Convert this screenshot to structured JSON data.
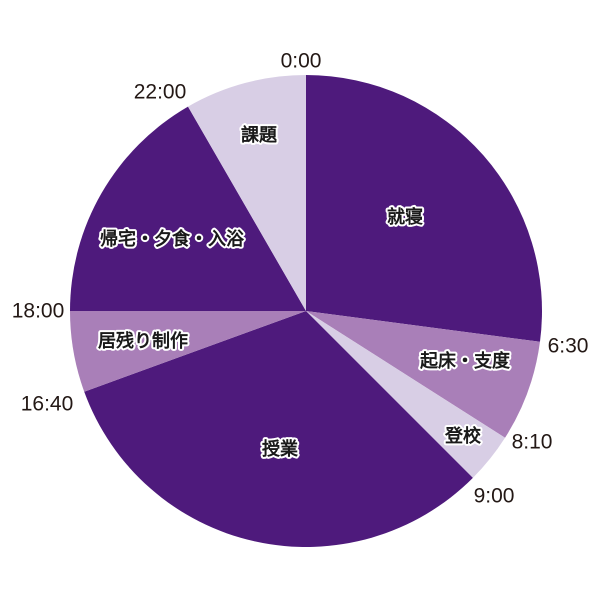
{
  "chart_data": {
    "type": "pie",
    "title": "",
    "unit": "hours of a 24-hour day, clockwise from 0:00 at top",
    "slices": [
      {
        "label": "就寝",
        "start": "0:00",
        "end": "6:30",
        "value": 6.5,
        "color": "#4e1a7c"
      },
      {
        "label": "起床・支度",
        "start": "6:30",
        "end": "8:10",
        "value": 1.6667,
        "color": "#a97fb8"
      },
      {
        "label": "登校",
        "start": "8:10",
        "end": "9:00",
        "value": 0.8333,
        "color": "#d8cee5"
      },
      {
        "label": "授業",
        "start": "9:00",
        "end": "16:40",
        "value": 7.6667,
        "color": "#4e1a7c"
      },
      {
        "label": "居残り制作",
        "start": "16:40",
        "end": "18:00",
        "value": 1.3333,
        "color": "#a97fb8"
      },
      {
        "label": "帰宅・夕食・入浴",
        "start": "18:00",
        "end": "22:00",
        "value": 4,
        "color": "#4e1a7c"
      },
      {
        "label": "課題",
        "start": "22:00",
        "end": "0:00",
        "value": 2,
        "color": "#d8cee5"
      }
    ],
    "time_labels": [
      "0:00",
      "6:30",
      "8:10",
      "9:00",
      "16:40",
      "18:00",
      "22:00"
    ]
  }
}
